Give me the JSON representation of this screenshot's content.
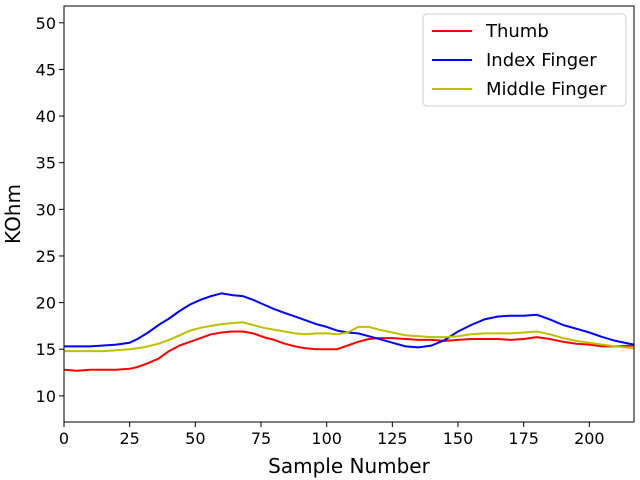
{
  "chart_data": {
    "type": "line",
    "title": "",
    "xlabel": "Sample Number",
    "ylabel": "KOhm",
    "xlim": [
      0,
      217
    ],
    "ylim": [
      7.2,
      51.8
    ],
    "xticks": [
      0,
      25,
      50,
      75,
      100,
      125,
      150,
      175,
      200
    ],
    "yticks": [
      10,
      15,
      20,
      25,
      30,
      35,
      40,
      45,
      50
    ],
    "grid": false,
    "legend_position": "top-right",
    "series": [
      {
        "name": "Thumb",
        "color": "#ff0000",
        "x": [
          0,
          5,
          10,
          15,
          20,
          25,
          28,
          32,
          36,
          40,
          44,
          48,
          52,
          56,
          60,
          64,
          68,
          72,
          76,
          80,
          84,
          88,
          92,
          96,
          100,
          104,
          108,
          112,
          116,
          120,
          125,
          130,
          135,
          140,
          145,
          150,
          155,
          160,
          165,
          170,
          175,
          180,
          185,
          190,
          195,
          200,
          205,
          210,
          217
        ],
        "values": [
          12.8,
          12.7,
          12.8,
          12.8,
          12.8,
          12.9,
          13.1,
          13.5,
          14.0,
          14.8,
          15.4,
          15.8,
          16.2,
          16.6,
          16.8,
          16.9,
          16.9,
          16.7,
          16.3,
          16.0,
          15.6,
          15.3,
          15.1,
          15.0,
          15.0,
          15.0,
          15.4,
          15.8,
          16.1,
          16.2,
          16.2,
          16.1,
          16.0,
          16.0,
          15.9,
          16.0,
          16.1,
          16.1,
          16.1,
          16.0,
          16.1,
          16.3,
          16.1,
          15.8,
          15.6,
          15.5,
          15.3,
          15.3,
          15.4
        ]
      },
      {
        "name": "Index Finger",
        "color": "#0000ff",
        "x": [
          0,
          5,
          10,
          15,
          20,
          25,
          28,
          32,
          36,
          40,
          44,
          48,
          52,
          56,
          60,
          64,
          68,
          72,
          76,
          80,
          84,
          88,
          92,
          96,
          100,
          104,
          108,
          112,
          116,
          120,
          125,
          130,
          135,
          140,
          145,
          150,
          155,
          160,
          165,
          170,
          175,
          180,
          185,
          190,
          195,
          200,
          205,
          210,
          217
        ],
        "values": [
          15.3,
          15.3,
          15.3,
          15.4,
          15.5,
          15.7,
          16.1,
          16.8,
          17.6,
          18.3,
          19.1,
          19.8,
          20.3,
          20.7,
          21.0,
          20.8,
          20.7,
          20.3,
          19.8,
          19.3,
          18.9,
          18.5,
          18.1,
          17.7,
          17.4,
          17.0,
          16.8,
          16.7,
          16.4,
          16.1,
          15.7,
          15.3,
          15.2,
          15.4,
          16.0,
          16.9,
          17.6,
          18.2,
          18.5,
          18.6,
          18.6,
          18.7,
          18.2,
          17.6,
          17.2,
          16.8,
          16.3,
          15.9,
          15.5
        ]
      },
      {
        "name": "Middle Finger",
        "color": "#bfbf00",
        "x": [
          0,
          5,
          10,
          15,
          20,
          25,
          28,
          32,
          36,
          40,
          44,
          48,
          52,
          56,
          60,
          64,
          68,
          72,
          76,
          80,
          84,
          88,
          92,
          96,
          100,
          104,
          108,
          112,
          116,
          120,
          125,
          130,
          135,
          140,
          145,
          150,
          155,
          160,
          165,
          170,
          175,
          180,
          185,
          190,
          195,
          200,
          205,
          210,
          217
        ],
        "values": [
          14.8,
          14.8,
          14.8,
          14.8,
          14.9,
          15.0,
          15.1,
          15.3,
          15.6,
          16.0,
          16.5,
          17.0,
          17.3,
          17.5,
          17.7,
          17.8,
          17.9,
          17.6,
          17.3,
          17.1,
          16.9,
          16.7,
          16.6,
          16.7,
          16.7,
          16.6,
          16.8,
          17.4,
          17.4,
          17.1,
          16.8,
          16.5,
          16.4,
          16.3,
          16.3,
          16.4,
          16.6,
          16.7,
          16.7,
          16.7,
          16.8,
          16.9,
          16.6,
          16.2,
          15.9,
          15.7,
          15.5,
          15.3,
          15.1
        ]
      }
    ]
  }
}
